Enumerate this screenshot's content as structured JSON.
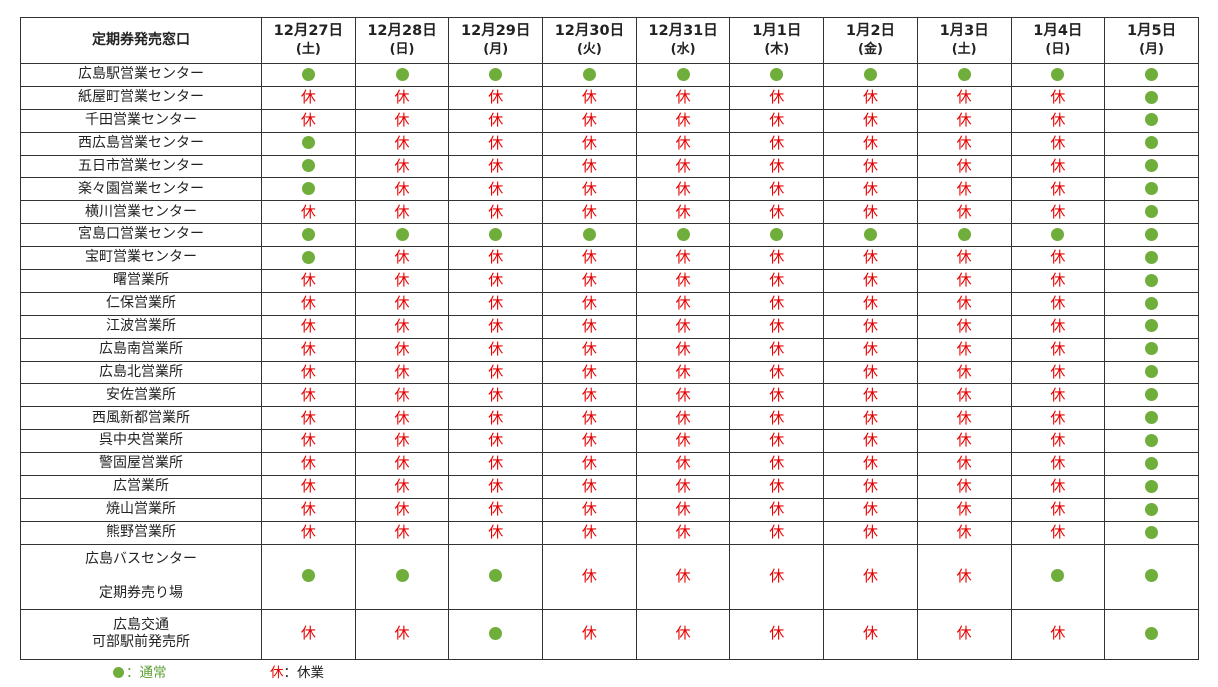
{
  "header": {
    "corner": "定期券発売窓口",
    "days": [
      {
        "date": "12月27日",
        "weekday": "(土)"
      },
      {
        "date": "12月28日",
        "weekday": "(日)"
      },
      {
        "date": "12月29日",
        "weekday": "(月)"
      },
      {
        "date": "12月30日",
        "weekday": "(火)"
      },
      {
        "date": "12月31日",
        "weekday": "(水)"
      },
      {
        "date": "1月1日",
        "weekday": "(木)"
      },
      {
        "date": "1月2日",
        "weekday": "(金)"
      },
      {
        "date": "1月3日",
        "weekday": "(土)"
      },
      {
        "date": "1月4日",
        "weekday": "(日)"
      },
      {
        "date": "1月5日",
        "weekday": "(月)"
      }
    ]
  },
  "closed_mark": "休",
  "rows": [
    {
      "name": [
        "広島駅営業センター"
      ],
      "status": [
        "open",
        "open",
        "open",
        "open",
        "open",
        "open",
        "open",
        "open",
        "open",
        "open"
      ]
    },
    {
      "name": [
        "紙屋町営業センター"
      ],
      "status": [
        "closed",
        "closed",
        "closed",
        "closed",
        "closed",
        "closed",
        "closed",
        "closed",
        "closed",
        "open"
      ]
    },
    {
      "name": [
        "千田営業センター"
      ],
      "status": [
        "closed",
        "closed",
        "closed",
        "closed",
        "closed",
        "closed",
        "closed",
        "closed",
        "closed",
        "open"
      ]
    },
    {
      "name": [
        "西広島営業センター"
      ],
      "status": [
        "open",
        "closed",
        "closed",
        "closed",
        "closed",
        "closed",
        "closed",
        "closed",
        "closed",
        "open"
      ]
    },
    {
      "name": [
        "五日市営業センター"
      ],
      "status": [
        "open",
        "closed",
        "closed",
        "closed",
        "closed",
        "closed",
        "closed",
        "closed",
        "closed",
        "open"
      ]
    },
    {
      "name": [
        "楽々園営業センター"
      ],
      "status": [
        "open",
        "closed",
        "closed",
        "closed",
        "closed",
        "closed",
        "closed",
        "closed",
        "closed",
        "open"
      ]
    },
    {
      "name": [
        "横川営業センター"
      ],
      "status": [
        "closed",
        "closed",
        "closed",
        "closed",
        "closed",
        "closed",
        "closed",
        "closed",
        "closed",
        "open"
      ]
    },
    {
      "name": [
        "宮島口営業センター"
      ],
      "status": [
        "open",
        "open",
        "open",
        "open",
        "open",
        "open",
        "open",
        "open",
        "open",
        "open"
      ]
    },
    {
      "name": [
        "宝町営業センター"
      ],
      "status": [
        "open",
        "closed",
        "closed",
        "closed",
        "closed",
        "closed",
        "closed",
        "closed",
        "closed",
        "open"
      ]
    },
    {
      "name": [
        "曙営業所"
      ],
      "status": [
        "closed",
        "closed",
        "closed",
        "closed",
        "closed",
        "closed",
        "closed",
        "closed",
        "closed",
        "open"
      ]
    },
    {
      "name": [
        "仁保営業所"
      ],
      "status": [
        "closed",
        "closed",
        "closed",
        "closed",
        "closed",
        "closed",
        "closed",
        "closed",
        "closed",
        "open"
      ]
    },
    {
      "name": [
        "江波営業所"
      ],
      "status": [
        "closed",
        "closed",
        "closed",
        "closed",
        "closed",
        "closed",
        "closed",
        "closed",
        "closed",
        "open"
      ]
    },
    {
      "name": [
        "広島南営業所"
      ],
      "status": [
        "closed",
        "closed",
        "closed",
        "closed",
        "closed",
        "closed",
        "closed",
        "closed",
        "closed",
        "open"
      ]
    },
    {
      "name": [
        "広島北営業所"
      ],
      "status": [
        "closed",
        "closed",
        "closed",
        "closed",
        "closed",
        "closed",
        "closed",
        "closed",
        "closed",
        "open"
      ]
    },
    {
      "name": [
        "安佐営業所"
      ],
      "status": [
        "closed",
        "closed",
        "closed",
        "closed",
        "closed",
        "closed",
        "closed",
        "closed",
        "closed",
        "open"
      ]
    },
    {
      "name": [
        "西風新都営業所"
      ],
      "status": [
        "closed",
        "closed",
        "closed",
        "closed",
        "closed",
        "closed",
        "closed",
        "closed",
        "closed",
        "open"
      ]
    },
    {
      "name": [
        "呉中央営業所"
      ],
      "status": [
        "closed",
        "closed",
        "closed",
        "closed",
        "closed",
        "closed",
        "closed",
        "closed",
        "closed",
        "open"
      ]
    },
    {
      "name": [
        "警固屋営業所"
      ],
      "status": [
        "closed",
        "closed",
        "closed",
        "closed",
        "closed",
        "closed",
        "closed",
        "closed",
        "closed",
        "open"
      ]
    },
    {
      "name": [
        "広営業所"
      ],
      "status": [
        "closed",
        "closed",
        "closed",
        "closed",
        "closed",
        "closed",
        "closed",
        "closed",
        "closed",
        "open"
      ]
    },
    {
      "name": [
        "焼山営業所"
      ],
      "status": [
        "closed",
        "closed",
        "closed",
        "closed",
        "closed",
        "closed",
        "closed",
        "closed",
        "closed",
        "open"
      ]
    },
    {
      "name": [
        "熊野営業所"
      ],
      "status": [
        "closed",
        "closed",
        "closed",
        "closed",
        "closed",
        "closed",
        "closed",
        "closed",
        "closed",
        "open"
      ]
    },
    {
      "name": [
        "広島バスセンター",
        "定期券売り場"
      ],
      "status": [
        "open",
        "open",
        "open",
        "closed",
        "closed",
        "closed",
        "closed",
        "closed",
        "open",
        "open"
      ],
      "tall": "big1"
    },
    {
      "name": [
        "広島交通",
        "可部駅前発売所"
      ],
      "status": [
        "closed",
        "closed",
        "open",
        "closed",
        "closed",
        "closed",
        "closed",
        "closed",
        "closed",
        "open"
      ],
      "tall": "big2"
    }
  ],
  "legend": {
    "open_label": "：通常",
    "closed_mark": "休",
    "closed_label": "：休業",
    "open_color": "#6fae3b",
    "closed_color": "#e60000"
  }
}
